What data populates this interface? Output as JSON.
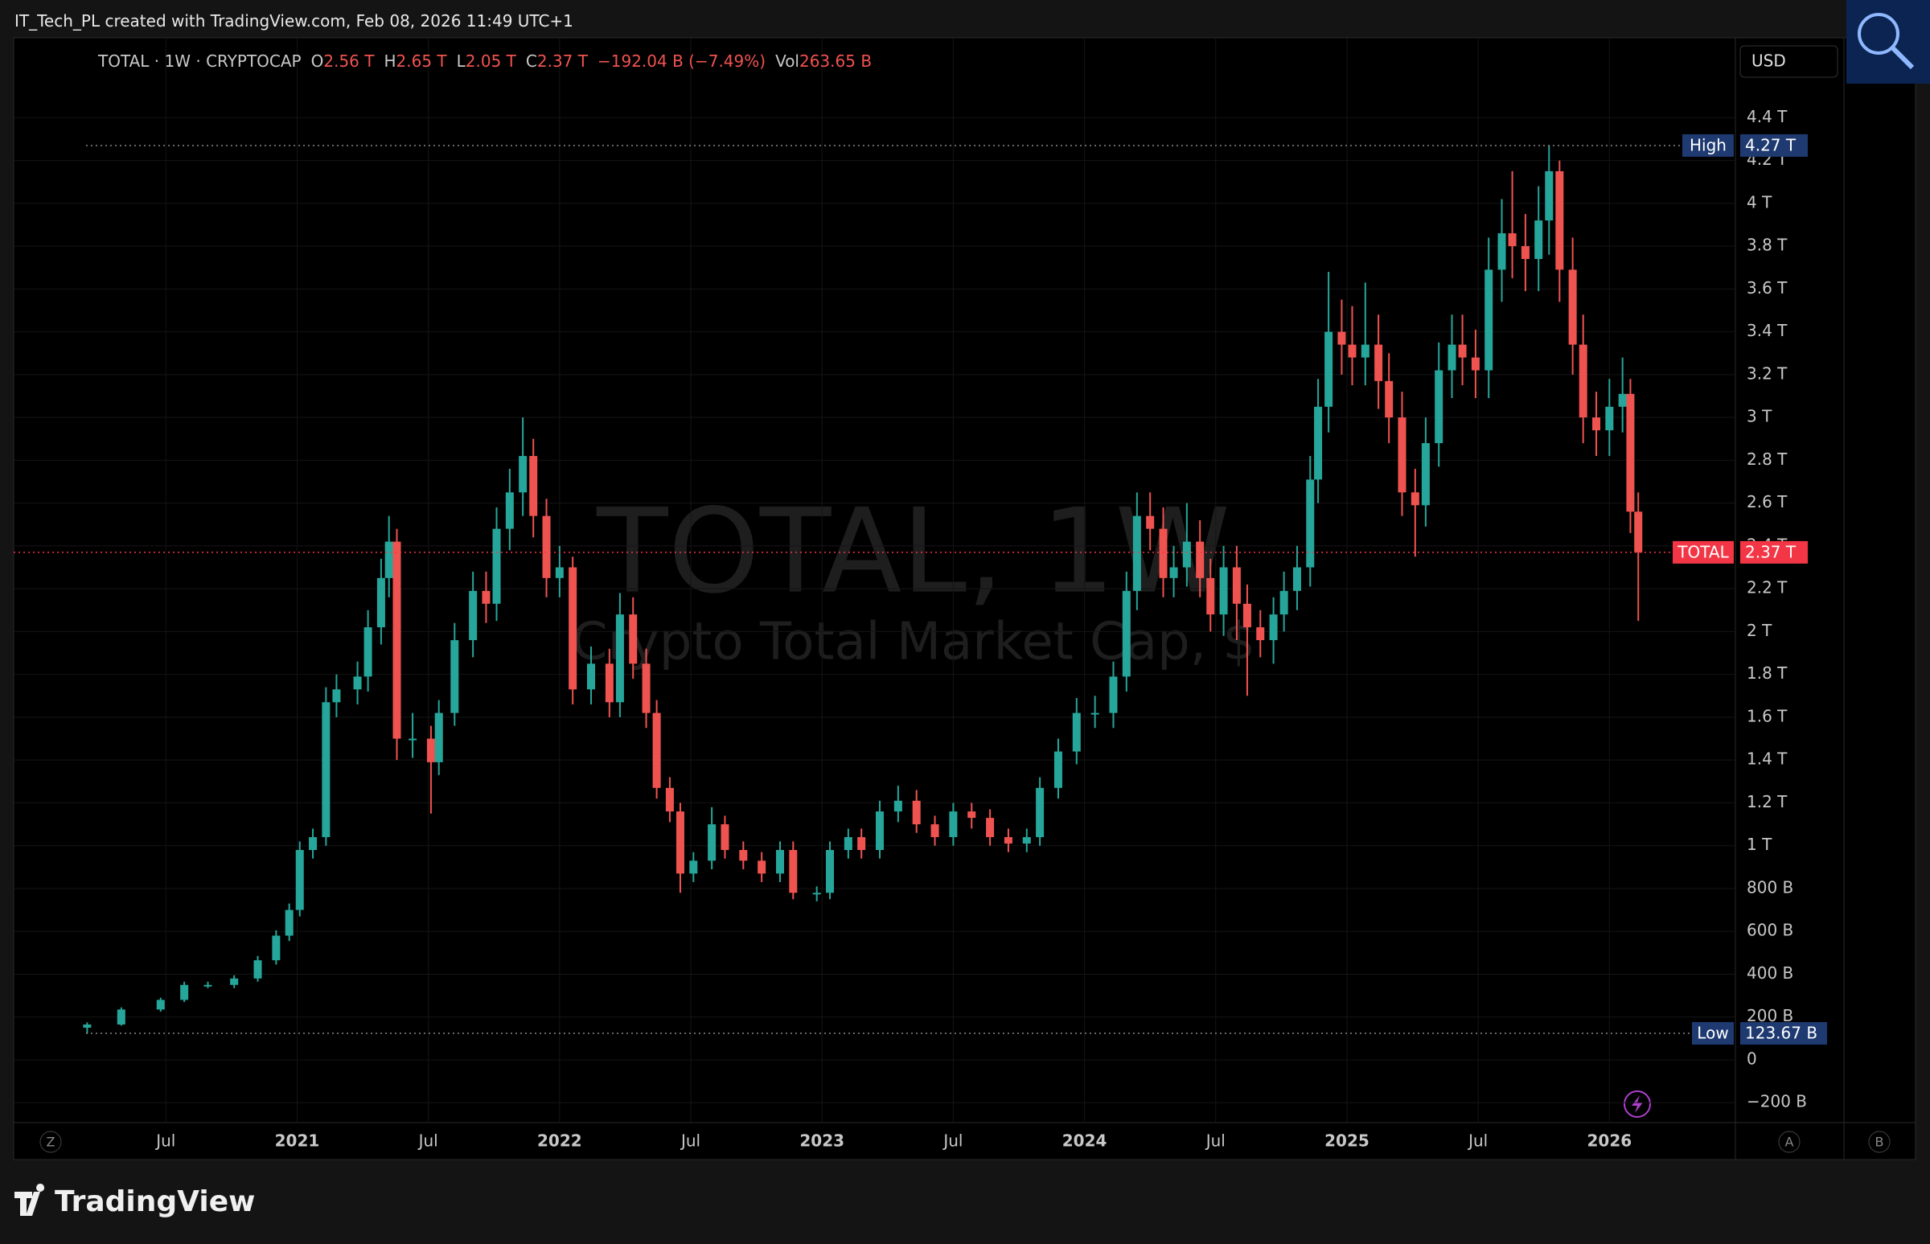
{
  "header": {
    "credit": "IT_Tech_PL created with TradingView.com, Feb 08, 2026 11:49 UTC+1",
    "brand": "TradingView"
  },
  "chart_data": {
    "type": "candlestick",
    "watermark_title": "TOTAL, 1W",
    "watermark_subtitle": "Crypto Total Market Cap, $",
    "legend": {
      "symbol": "TOTAL · 1W · CRYPTOCAP",
      "open_label": "O",
      "open": "2.56 T",
      "high_label": "H",
      "high": "2.65 T",
      "low_label": "L",
      "low": "2.05 T",
      "close_label": "C",
      "close": "2.37 T",
      "change": "−192.04 B (−7.49%)",
      "volume_label": "Vol",
      "volume": "263.65 B"
    },
    "currency": "USD",
    "toolbar": {
      "left": "Z",
      "auto": "A",
      "log": "B"
    },
    "x": [
      2020.2,
      2020.33,
      2020.48,
      2020.57,
      2020.66,
      2020.76,
      2020.85,
      2020.92,
      2020.97,
      2021.01,
      2021.06,
      2021.11,
      2021.15,
      2021.23,
      2021.27,
      2021.32,
      2021.35,
      2021.38,
      2021.44,
      2021.51,
      2021.54,
      2021.6,
      2021.67,
      2021.72,
      2021.76,
      2021.81,
      2021.86,
      2021.9,
      2021.95,
      2022.0,
      2022.05,
      2022.12,
      2022.19,
      2022.23,
      2022.28,
      2022.33,
      2022.37,
      2022.42,
      2022.46,
      2022.51,
      2022.58,
      2022.63,
      2022.7,
      2022.77,
      2022.84,
      2022.89,
      2022.98,
      2023.03,
      2023.1,
      2023.15,
      2023.22,
      2023.29,
      2023.36,
      2023.43,
      2023.5,
      2023.57,
      2023.64,
      2023.71,
      2023.78,
      2023.83,
      2023.9,
      2023.97,
      2024.04,
      2024.11,
      2024.16,
      2024.2,
      2024.25,
      2024.3,
      2024.34,
      2024.39,
      2024.44,
      2024.48,
      2024.53,
      2024.58,
      2024.62,
      2024.67,
      2024.72,
      2024.76,
      2024.81,
      2024.86,
      2024.89,
      2024.93,
      2024.98,
      2025.02,
      2025.07,
      2025.12,
      2025.16,
      2025.21,
      2025.26,
      2025.3,
      2025.35,
      2025.4,
      2025.44,
      2025.49,
      2025.54,
      2025.59,
      2025.63,
      2025.68,
      2025.73,
      2025.77,
      2025.81,
      2025.86,
      2025.9,
      2025.95,
      2026.0,
      2026.05,
      2026.08,
      2026.11
    ],
    "open": [
      150,
      165,
      235,
      280,
      350,
      350,
      380,
      465,
      580,
      700,
      980,
      1040,
      1670,
      1730,
      1790,
      2020,
      2250,
      2420,
      1500,
      1500,
      1390,
      1620,
      1960,
      2190,
      2130,
      2480,
      2650,
      2820,
      2540,
      2250,
      2300,
      1730,
      1850,
      1670,
      2080,
      1850,
      1620,
      1270,
      1160,
      870,
      930,
      1100,
      980,
      930,
      870,
      980,
      780,
      780,
      980,
      1040,
      980,
      1160,
      1210,
      1100,
      1040,
      1160,
      1130,
      1040,
      1010,
      1040,
      1270,
      1440,
      1620,
      1620,
      1790,
      2190,
      2540,
      2480,
      2250,
      2300,
      2420,
      2250,
      2080,
      2300,
      2130,
      2020,
      1960,
      2080,
      2190,
      2300,
      2710,
      3050,
      3400,
      3340,
      3280,
      3340,
      3170,
      3000,
      2650,
      2590,
      2880,
      3220,
      3340,
      3280,
      3220,
      3690,
      3860,
      3800,
      3740,
      3920,
      4150,
      3690,
      3340,
      3000,
      2940,
      3050,
      3110,
      2560
    ],
    "high": [
      175,
      245,
      290,
      365,
      365,
      395,
      485,
      605,
      730,
      1020,
      1080,
      1740,
      1800,
      1860,
      2100,
      2340,
      2540,
      2480,
      1620,
      1560,
      1680,
      2040,
      2280,
      2280,
      2580,
      2760,
      3000,
      2900,
      2620,
      2400,
      2350,
      1930,
      1920,
      2180,
      2160,
      1920,
      1680,
      1320,
      1200,
      970,
      1180,
      1140,
      1020,
      970,
      1020,
      1020,
      810,
      1020,
      1080,
      1080,
      1210,
      1280,
      1260,
      1140,
      1200,
      1200,
      1170,
      1080,
      1080,
      1320,
      1500,
      1690,
      1700,
      1860,
      2280,
      2650,
      2650,
      2580,
      2400,
      2600,
      2520,
      2340,
      2400,
      2400,
      2220,
      2100,
      2160,
      2280,
      2400,
      2820,
      3180,
      3680,
      3550,
      3520,
      3630,
      3480,
      3300,
      3120,
      2760,
      3000,
      3350,
      3480,
      3480,
      3410,
      3840,
      4020,
      4150,
      3950,
      4080,
      4270,
      4200,
      3840,
      3480,
      3120,
      3180,
      3280,
      3180,
      2650
    ],
    "low": [
      123.67,
      160,
      225,
      270,
      335,
      335,
      365,
      445,
      555,
      670,
      940,
      1000,
      1600,
      1660,
      1720,
      1940,
      2160,
      1400,
      1410,
      1150,
      1330,
      1560,
      1880,
      2040,
      2050,
      2380,
      2540,
      2440,
      2160,
      2160,
      1660,
      1660,
      1600,
      1600,
      1780,
      1550,
      1220,
      1110,
      780,
      830,
      890,
      940,
      890,
      830,
      830,
      750,
      740,
      750,
      940,
      940,
      940,
      1110,
      1060,
      1000,
      1000,
      1080,
      1000,
      970,
      970,
      1000,
      1220,
      1380,
      1550,
      1550,
      1720,
      2100,
      2380,
      2160,
      2160,
      2210,
      2160,
      2000,
      1980,
      1960,
      1700,
      1880,
      1850,
      2000,
      2100,
      2210,
      2600,
      2930,
      3200,
      3150,
      3150,
      3040,
      2880,
      2540,
      2350,
      2490,
      2770,
      3090,
      3150,
      3090,
      3090,
      3540,
      3650,
      3590,
      3590,
      3760,
      3540,
      3200,
      2880,
      2820,
      2820,
      2930,
      2460,
      2050
    ],
    "close": [
      165,
      235,
      280,
      350,
      350,
      380,
      465,
      580,
      700,
      980,
      1040,
      1670,
      1730,
      1790,
      2020,
      2250,
      2420,
      1500,
      1500,
      1390,
      1620,
      1960,
      2190,
      2130,
      2480,
      2650,
      2820,
      2540,
      2250,
      2300,
      1730,
      1850,
      1670,
      2080,
      1850,
      1620,
      1270,
      1160,
      870,
      930,
      1100,
      980,
      930,
      870,
      980,
      780,
      780,
      980,
      1040,
      980,
      1160,
      1210,
      1100,
      1040,
      1160,
      1130,
      1040,
      1010,
      1040,
      1270,
      1440,
      1620,
      1620,
      1790,
      2190,
      2540,
      2480,
      2250,
      2300,
      2420,
      2250,
      2080,
      2300,
      2130,
      2020,
      1960,
      2080,
      2190,
      2300,
      2710,
      3050,
      3400,
      3340,
      3280,
      3340,
      3170,
      3000,
      2650,
      2590,
      2880,
      3220,
      3340,
      3280,
      3220,
      3690,
      3860,
      3800,
      3740,
      3920,
      4150,
      3690,
      3340,
      3000,
      2940,
      3050,
      3110,
      2560,
      2370
    ],
    "up_color": "#26a69a",
    "down_color": "#ef5350",
    "xlim": [
      2019.92,
      2026.48
    ],
    "xticks": [
      {
        "value": 2020.5,
        "label": "Jul"
      },
      2021,
      {
        "value": 2021.5,
        "label": "Jul"
      },
      2022,
      {
        "value": 2022.5,
        "label": "Jul"
      },
      2023,
      {
        "value": 2023.5,
        "label": "Jul"
      },
      2024,
      {
        "value": 2024.5,
        "label": "Jul"
      },
      2025,
      {
        "value": 2025.5,
        "label": "Jul"
      },
      2026
    ],
    "ylim": [
      -293,
      4773
    ],
    "yticks": [
      {
        "value": -200,
        "label": "−200 B"
      },
      0,
      {
        "value": 200,
        "label": "200 B"
      },
      {
        "value": 400,
        "label": "400 B"
      },
      {
        "value": 600,
        "label": "600 B"
      },
      {
        "value": 800,
        "label": "800 B"
      },
      {
        "value": 1000,
        "label": "1 T"
      },
      {
        "value": 1200,
        "label": "1.2 T"
      },
      {
        "value": 1400,
        "label": "1.4 T"
      },
      {
        "value": 1600,
        "label": "1.6 T"
      },
      {
        "value": 1800,
        "label": "1.8 T"
      },
      {
        "value": 2000,
        "label": "2 T"
      },
      {
        "value": 2200,
        "label": "2.2 T"
      },
      {
        "value": 2400,
        "label": "2.4 T"
      },
      {
        "value": 2600,
        "label": "2.6 T"
      },
      {
        "value": 2800,
        "label": "2.8 T"
      },
      {
        "value": 3000,
        "label": "3 T"
      },
      {
        "value": 3200,
        "label": "3.2 T"
      },
      {
        "value": 3400,
        "label": "3.4 T"
      },
      {
        "value": 3600,
        "label": "3.6 T"
      },
      {
        "value": 3800,
        "label": "3.8 T"
      },
      {
        "value": 4000,
        "label": "4 T"
      },
      {
        "value": 4200,
        "label": "4.2 T"
      },
      {
        "value": 4400,
        "label": "4.4 T"
      }
    ],
    "grid": true,
    "markers": [
      {
        "name": "High",
        "label": "4.27 T",
        "value": 4270,
        "color": "#1e3a70",
        "line": "#888888"
      },
      {
        "name": "Low",
        "label": "123.67 B",
        "value": 123.67,
        "color": "#1e3a70",
        "line": "#888888"
      },
      {
        "name": "TOTAL",
        "label": "2.37 T",
        "value": 2370,
        "color": "#f23645",
        "line": "#f23645"
      }
    ]
  }
}
